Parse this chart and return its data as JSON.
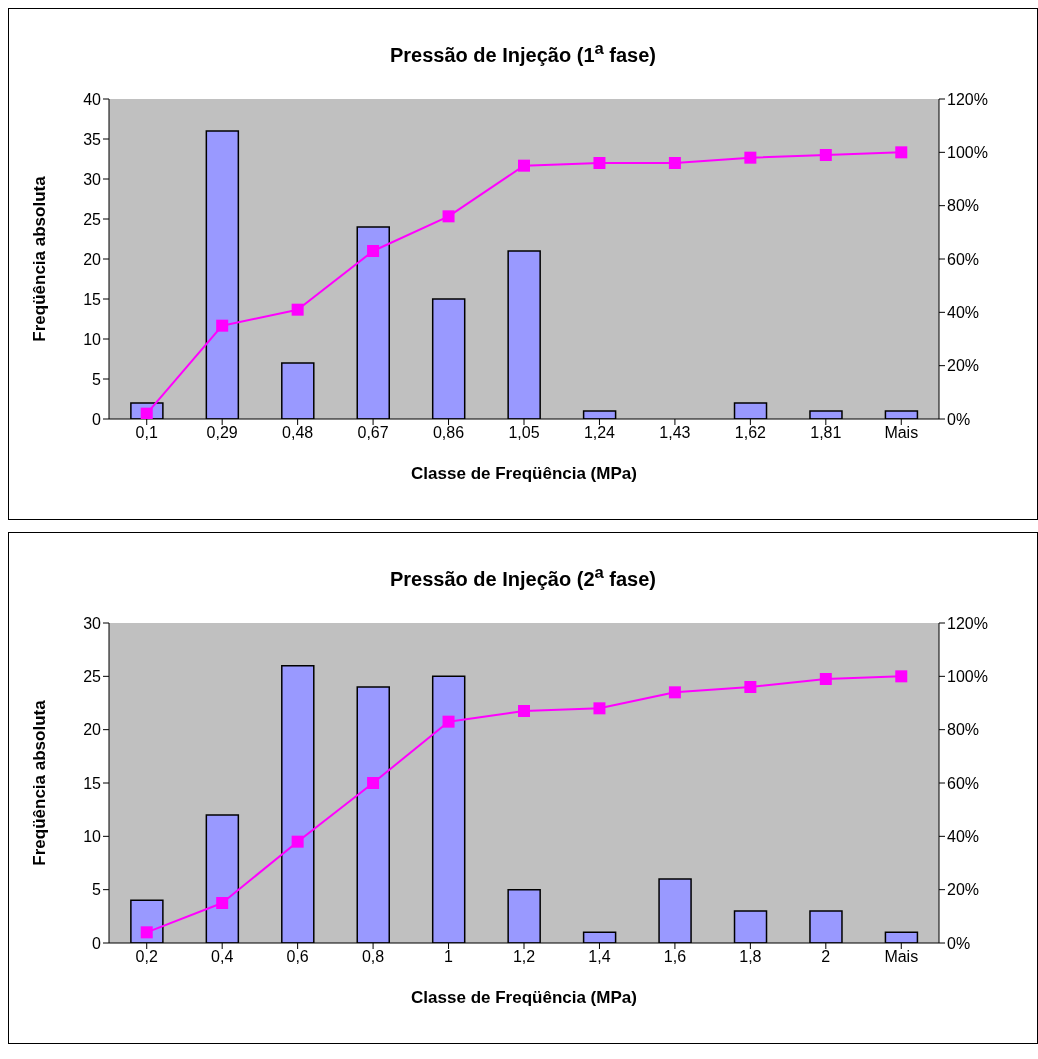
{
  "chart_data": [
    {
      "type": "bar",
      "title": "Pressão de Injeção (1$^{a}$ fase)",
      "xlabel": "Classe de Freqüência (MPa)",
      "ylabel": "Freqüência absoluta",
      "categories": [
        "0,1",
        "0,29",
        "0,48",
        "0,67",
        "0,86",
        "1,05",
        "1,24",
        "1,43",
        "1,62",
        "1,81",
        "Mais"
      ],
      "series": [
        {
          "color": "#9999ff",
          "values": [
            2,
            36,
            7,
            24,
            15,
            21,
            1,
            0,
            2,
            1,
            1
          ]
        },
        {
          "type": "line",
          "axis": "y2",
          "color": "#ff00ff",
          "values": [
            2,
            35,
            41,
            63,
            76,
            95,
            96,
            96,
            98,
            99,
            100
          ]
        }
      ],
      "ylim": [
        0,
        40
      ],
      "yticks": [
        0,
        5,
        10,
        15,
        20,
        25,
        30,
        35,
        40
      ],
      "y2lim": [
        0,
        120
      ],
      "y2ticks": [
        {
          "value": 0,
          "label": "0%"
        },
        {
          "value": 20,
          "label": "20%"
        },
        {
          "value": 40,
          "label": "40%"
        },
        {
          "value": 60,
          "label": "60%"
        },
        {
          "value": 80,
          "label": "80%"
        },
        {
          "value": 100,
          "label": "100%"
        },
        {
          "value": 120,
          "label": "120%"
        }
      ],
      "marker": "square",
      "legend": false,
      "grid": false
    },
    {
      "type": "bar",
      "title": "Pressão de Injeção (2$^{a}$ fase)",
      "xlabel": "Classe de Freqüência (MPa)",
      "ylabel": "Freqüência absoluta",
      "categories": [
        "0,2",
        "0,4",
        "0,6",
        "0,8",
        "1",
        "1,2",
        "1,4",
        "1,6",
        "1,8",
        "2",
        "Mais"
      ],
      "series": [
        {
          "color": "#9999ff",
          "values": [
            4,
            12,
            26,
            24,
            25,
            5,
            1,
            6,
            3,
            3,
            1
          ]
        },
        {
          "type": "line",
          "axis": "y2",
          "color": "#ff00ff",
          "values": [
            4,
            15,
            38,
            60,
            83,
            87,
            88,
            94,
            96,
            99,
            100
          ]
        }
      ],
      "ylim": [
        0,
        30
      ],
      "yticks": [
        0,
        5,
        10,
        15,
        20,
        25,
        30
      ],
      "y2lim": [
        0,
        120
      ],
      "y2ticks": [
        {
          "value": 0,
          "label": "0%"
        },
        {
          "value": 20,
          "label": "20%"
        },
        {
          "value": 40,
          "label": "40%"
        },
        {
          "value": 60,
          "label": "60%"
        },
        {
          "value": 80,
          "label": "80%"
        },
        {
          "value": 100,
          "label": "100%"
        },
        {
          "value": 120,
          "label": "120%"
        }
      ],
      "marker": "square",
      "legend": false,
      "grid": false
    }
  ]
}
